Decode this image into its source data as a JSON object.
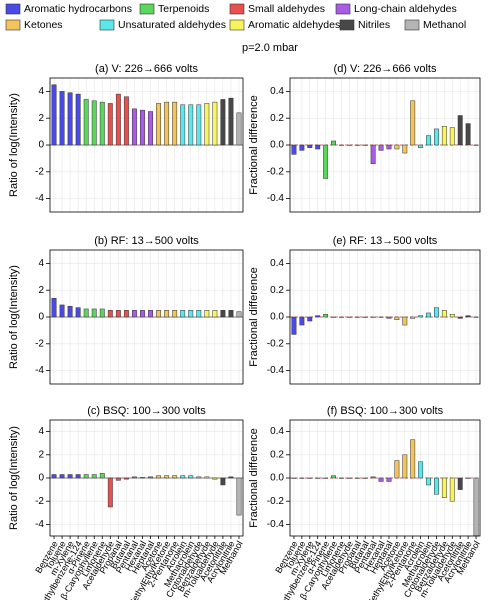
{
  "supertitle": "p=2.0 mbar",
  "legend": [
    {
      "name": "Aromatic hydrocarbons",
      "color": "#4a4ae6"
    },
    {
      "name": "Terpenoids",
      "color": "#5ad65a"
    },
    {
      "name": "Small aldehydes",
      "color": "#e85050"
    },
    {
      "name": "Long-chain aldehydes",
      "color": "#a95ae6"
    },
    {
      "name": "Ketones",
      "color": "#f2c45a"
    },
    {
      "name": "Unsaturated aldehydes",
      "color": "#5ae8ec"
    },
    {
      "name": "Aromatic aldehydes",
      "color": "#f8f45a"
    },
    {
      "name": "Nitriles",
      "color": "#484848"
    },
    {
      "name": "Methanol",
      "color": "#b4b4b4"
    }
  ],
  "categories": [
    "Benzene",
    "Toluene",
    "m-Xylene",
    "Trimethylbenzene-124",
    "α-Pinene",
    "β-Caryophyllene",
    "Limonene",
    "Acetaldehyde",
    "Propanal",
    "Butanal",
    "Pentanal",
    "Hexanal",
    "Heptanal",
    "Acetone",
    "MethylEthylKetone",
    "2-Pentanone",
    "Acrolein",
    "Methacrolein",
    "Crotonaldehyde",
    "Benzaldehyde",
    "m-Tolualdehyde",
    "Acetonitrile",
    "Acrylonitrile",
    "Methanol"
  ],
  "bar_colors": [
    "#4a4ae6",
    "#4a4ae6",
    "#4a4ae6",
    "#4a4ae6",
    "#5ad65a",
    "#5ad65a",
    "#5ad65a",
    "#e85050",
    "#e85050",
    "#e85050",
    "#a95ae6",
    "#a95ae6",
    "#a95ae6",
    "#f2c45a",
    "#f2c45a",
    "#f2c45a",
    "#5ae8ec",
    "#5ae8ec",
    "#5ae8ec",
    "#f8f45a",
    "#f8f45a",
    "#484848",
    "#484848",
    "#b4b4b4"
  ],
  "chart_data": [
    {
      "type": "bar",
      "title": "(a) V: 226→666 volts",
      "ylabel": "Ratio of log(Intensity)",
      "ylim": [
        -5,
        5
      ],
      "yticks": [
        -4,
        -2,
        0,
        2,
        4
      ],
      "values": [
        4.5,
        4.0,
        3.9,
        3.8,
        3.4,
        3.3,
        3.2,
        3.1,
        3.8,
        3.6,
        2.7,
        2.6,
        2.5,
        3.1,
        3.2,
        3.2,
        3.0,
        3.0,
        3.0,
        3.1,
        3.2,
        3.4,
        3.5,
        2.4
      ]
    },
    {
      "type": "bar",
      "title": "(b) RF: 13→500 volts",
      "ylabel": "Ratio of log(Intensity)",
      "ylim": [
        -5,
        5
      ],
      "yticks": [
        -4,
        -2,
        0,
        2,
        4
      ],
      "values": [
        1.4,
        0.9,
        0.8,
        0.7,
        0.6,
        0.6,
        0.6,
        0.5,
        0.5,
        0.5,
        0.5,
        0.5,
        0.5,
        0.5,
        0.5,
        0.5,
        0.5,
        0.5,
        0.5,
        0.5,
        0.5,
        0.5,
        0.5,
        0.4
      ]
    },
    {
      "type": "bar",
      "title": "(c) BSQ: 100→300 volts",
      "ylabel": "Ratio of log(Intensity)",
      "ylim": [
        -5,
        5
      ],
      "yticks": [
        -4,
        -2,
        0,
        2,
        4
      ],
      "show_categories": true,
      "values": [
        0.3,
        0.3,
        0.3,
        0.3,
        0.3,
        0.3,
        0.4,
        -2.5,
        -0.2,
        -0.1,
        0.1,
        0.05,
        0.1,
        0.2,
        0.2,
        0.2,
        0.2,
        0.2,
        0.1,
        0.1,
        -0.1,
        -0.6,
        0.1,
        -3.2
      ]
    },
    {
      "type": "bar",
      "title": "(d) V: 226→666 volts",
      "ylabel": "Fractional difference",
      "ylim": [
        -0.5,
        0.5
      ],
      "yticks": [
        -0.4,
        -0.2,
        {
          "value": 0,
          "label": "0.0"
        },
        0.2,
        0.4
      ],
      "values": [
        -0.07,
        -0.04,
        -0.02,
        -0.03,
        -0.25,
        0.03,
        0,
        0,
        0,
        0,
        -0.14,
        -0.04,
        -0.03,
        -0.03,
        -0.06,
        0.33,
        -0.02,
        0.07,
        0.12,
        0.14,
        0.13,
        0.22,
        0.16,
        0
      ]
    },
    {
      "type": "bar",
      "title": "(e) RF: 13→500 volts",
      "ylabel": "Fractional difference",
      "ylim": [
        -0.5,
        0.5
      ],
      "yticks": [
        -0.4,
        -0.2,
        {
          "value": 0,
          "label": "0.0"
        },
        0.2,
        0.4
      ],
      "values": [
        -0.13,
        -0.06,
        -0.03,
        0.01,
        0.02,
        0,
        0,
        0,
        0,
        0,
        0,
        0,
        -0.01,
        -0.02,
        -0.06,
        -0.01,
        0.01,
        0.03,
        0.07,
        0.05,
        0.02,
        -0.01,
        0.01,
        0
      ]
    },
    {
      "type": "bar",
      "title": "(f) BSQ: 100→300 volts",
      "ylabel": "Fractional difference",
      "ylim": [
        -0.5,
        0.5
      ],
      "yticks": [
        -0.4,
        -0.2,
        {
          "value": 0,
          "label": "0.0"
        },
        0.2,
        0.4
      ],
      "show_categories": true,
      "values": [
        0,
        0,
        0,
        0,
        0,
        0.02,
        0,
        0,
        0,
        0,
        0.01,
        -0.03,
        -0.03,
        0.15,
        0.2,
        0.33,
        0.14,
        -0.06,
        -0.14,
        -0.17,
        -0.2,
        -0.1,
        0,
        -0.5
      ]
    }
  ]
}
